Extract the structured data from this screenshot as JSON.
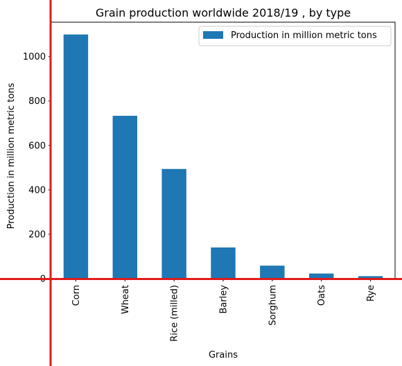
{
  "chart_data": {
    "type": "bar",
    "title": "Grain production worldwide 2018/19 , by type",
    "xlabel": "Grains",
    "ylabel": "Production in million metric tons",
    "categories": [
      "Corn",
      "Wheat",
      "Rice (milled)",
      "Barley",
      "Sorghum",
      "Oats",
      "Rye"
    ],
    "series": [
      {
        "name": "Production in million metric tons",
        "values": [
          1099.6,
          733.4,
          494.0,
          140.4,
          58.6,
          23.1,
          11.3
        ],
        "color": "#1f77b4"
      }
    ],
    "ylim": [
      0,
      1155
    ],
    "yticks": [
      0,
      200,
      400,
      600,
      800,
      1000
    ],
    "legend_position": "top-right",
    "grid": false,
    "annotation_line_color": "#e01b1b"
  }
}
